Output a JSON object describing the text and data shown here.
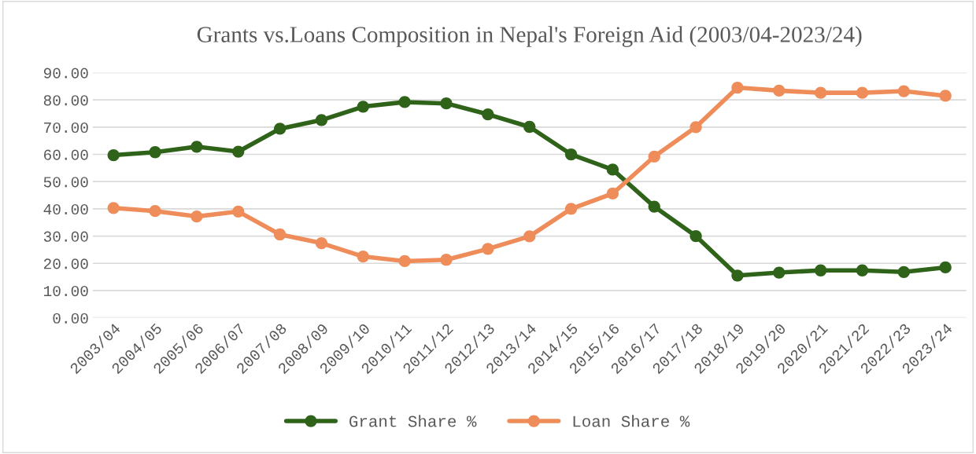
{
  "chart_data": {
    "type": "line",
    "title": "Grants vs.Loans Composition in Nepal's Foreign Aid (2003/04-2023/24)",
    "categories": [
      "2003/04",
      "2004/05",
      "2005/06",
      "2006/07",
      "2007/08",
      "2008/09",
      "2009/10",
      "2010/11",
      "2011/12",
      "2012/13",
      "2013/14",
      "2014/15",
      "2015/16",
      "2016/17",
      "2017/18",
      "2018/19",
      "2019/20",
      "2020/21",
      "2021/22",
      "2022/23",
      "2023/24"
    ],
    "series": [
      {
        "name": "Grant Share %",
        "color": "#2e6319",
        "values": [
          59.7,
          60.8,
          62.8,
          61.0,
          69.4,
          72.6,
          77.5,
          79.2,
          78.7,
          74.7,
          70.1,
          60.0,
          54.4,
          40.8,
          30.0,
          15.5,
          16.6,
          17.4,
          17.4,
          16.8,
          18.5
        ]
      },
      {
        "name": "Loan Share %",
        "color": "#ee8d5a",
        "values": [
          40.3,
          39.2,
          37.2,
          39.0,
          30.6,
          27.4,
          22.5,
          20.8,
          21.3,
          25.3,
          29.9,
          40.0,
          45.6,
          59.2,
          70.0,
          84.5,
          83.4,
          82.6,
          82.6,
          83.2,
          81.5
        ]
      }
    ],
    "ylim": [
      0,
      90
    ],
    "yticks": [
      {
        "value": 0,
        "label": "0.00"
      },
      {
        "value": 10,
        "label": "10.00"
      },
      {
        "value": 20,
        "label": "20.00"
      },
      {
        "value": 30,
        "label": "30.00"
      },
      {
        "value": 40,
        "label": "40.00"
      },
      {
        "value": 50,
        "label": "50.00"
      },
      {
        "value": 60,
        "label": "60.00"
      },
      {
        "value": 70,
        "label": "70.00"
      },
      {
        "value": 80,
        "label": "80.00"
      },
      {
        "value": 90,
        "label": "90.00"
      }
    ],
    "grid": "y",
    "legend": "bottom",
    "marker": "circle",
    "line_style": "solid"
  }
}
